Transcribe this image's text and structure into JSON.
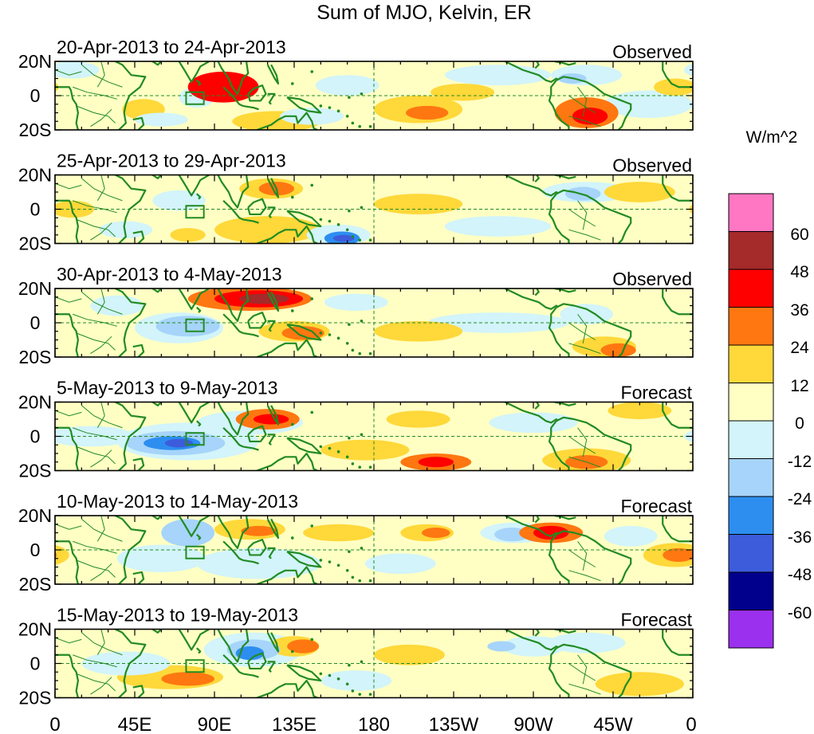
{
  "title": "Sum of MJO, Kelvin, ER",
  "panels": [
    {
      "date_range": "20-Apr-2013 to 24-Apr-2013",
      "status": "Observed"
    },
    {
      "date_range": "25-Apr-2013 to 29-Apr-2013",
      "status": "Observed"
    },
    {
      "date_range": "30-Apr-2013 to 4-May-2013",
      "status": "Observed"
    },
    {
      "date_range": "5-May-2013 to 9-May-2013",
      "status": "Forecast"
    },
    {
      "date_range": "10-May-2013 to 14-May-2013",
      "status": "Forecast"
    },
    {
      "date_range": "15-May-2013 to 19-May-2013",
      "status": "Forecast"
    }
  ],
  "lat_labels": [
    "20N",
    "0",
    "20S"
  ],
  "lon_labels": [
    "0",
    "45E",
    "90E",
    "135E",
    "180",
    "135W",
    "90W",
    "45W",
    "0"
  ],
  "colorbar": {
    "unit": "W/m^2",
    "levels": [
      "60",
      "48",
      "36",
      "24",
      "12",
      "0",
      "-12",
      "-24",
      "-36",
      "-48",
      "-60"
    ],
    "colors": [
      "#ff77c2",
      "#a52a2a",
      "#ff0000",
      "#ff7711",
      "#ffd83a",
      "#ffffc4",
      "#d2f4fa",
      "#a6d4fa",
      "#2d8ef0",
      "#3c5cdc",
      "#00008c",
      "#9b30ef"
    ]
  },
  "map_colors": {
    "coast": "#228b22",
    "ocean_background": "#ffffc4"
  }
}
